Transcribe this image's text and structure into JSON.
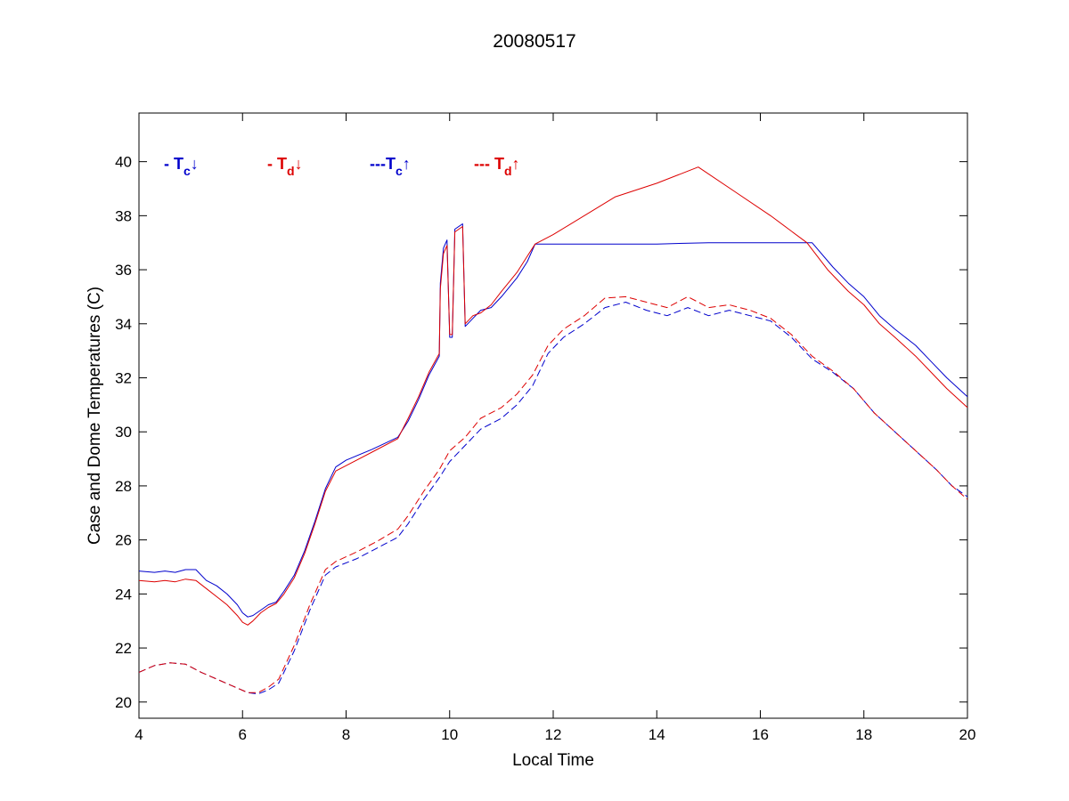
{
  "chart_data": {
    "type": "line",
    "title": "20080517",
    "xlabel": "Local Time",
    "ylabel": "Case and Dome Temperatures (C)",
    "xlim": [
      4,
      20
    ],
    "ylim": [
      19.4,
      41.8
    ],
    "xticks": [
      4,
      6,
      8,
      10,
      12,
      14,
      16,
      18,
      20
    ],
    "yticks": [
      20,
      22,
      24,
      26,
      28,
      30,
      32,
      34,
      36,
      38,
      40
    ],
    "grid": false,
    "legend_position": "top-left-inside",
    "colors": {
      "blue": "#0000cc",
      "red": "#dd0000"
    },
    "legend": [
      {
        "prefix": "- T",
        "sub": "c",
        "arrow": "↓",
        "color": "#0000cc"
      },
      {
        "prefix": "- T",
        "sub": "d",
        "arrow": "↓",
        "color": "#dd0000"
      },
      {
        "prefix": "---T",
        "sub": "c",
        "arrow": "↑",
        "color": "#0000cc"
      },
      {
        "prefix": "--- T",
        "sub": "d",
        "arrow": "↑",
        "color": "#dd0000"
      }
    ],
    "series": [
      {
        "color": "#0000cc",
        "dash": "solid",
        "points": [
          [
            4.0,
            24.85
          ],
          [
            4.3,
            24.8
          ],
          [
            4.5,
            24.85
          ],
          [
            4.7,
            24.8
          ],
          [
            4.9,
            24.9
          ],
          [
            5.1,
            24.9
          ],
          [
            5.3,
            24.5
          ],
          [
            5.5,
            24.3
          ],
          [
            5.7,
            24.0
          ],
          [
            5.9,
            23.6
          ],
          [
            6.0,
            23.3
          ],
          [
            6.1,
            23.15
          ],
          [
            6.2,
            23.2
          ],
          [
            6.35,
            23.4
          ],
          [
            6.5,
            23.6
          ],
          [
            6.65,
            23.7
          ],
          [
            6.8,
            24.1
          ],
          [
            7.0,
            24.7
          ],
          [
            7.2,
            25.6
          ],
          [
            7.4,
            26.7
          ],
          [
            7.6,
            27.9
          ],
          [
            7.8,
            28.7
          ],
          [
            8.0,
            28.95
          ],
          [
            8.5,
            29.35
          ],
          [
            9.0,
            29.8
          ],
          [
            9.2,
            30.4
          ],
          [
            9.4,
            31.2
          ],
          [
            9.6,
            32.1
          ],
          [
            9.8,
            32.8
          ],
          [
            9.82,
            35.5
          ],
          [
            9.88,
            36.8
          ],
          [
            9.95,
            37.1
          ],
          [
            10.0,
            33.5
          ],
          [
            10.05,
            33.5
          ],
          [
            10.1,
            37.5
          ],
          [
            10.25,
            37.7
          ],
          [
            10.3,
            33.9
          ],
          [
            10.45,
            34.2
          ],
          [
            10.6,
            34.5
          ],
          [
            10.8,
            34.6
          ],
          [
            11.0,
            35.0
          ],
          [
            11.3,
            35.7
          ],
          [
            11.5,
            36.3
          ],
          [
            11.65,
            36.95
          ],
          [
            12.0,
            36.95
          ],
          [
            13.0,
            36.95
          ],
          [
            14.0,
            36.95
          ],
          [
            15.0,
            37.0
          ],
          [
            16.0,
            37.0
          ],
          [
            17.0,
            37.0
          ],
          [
            17.4,
            36.1
          ],
          [
            17.7,
            35.5
          ],
          [
            18.0,
            35.0
          ],
          [
            18.3,
            34.3
          ],
          [
            18.6,
            33.8
          ],
          [
            19.0,
            33.2
          ],
          [
            19.3,
            32.6
          ],
          [
            19.6,
            32.0
          ],
          [
            20.0,
            31.3
          ]
        ]
      },
      {
        "color": "#dd0000",
        "dash": "solid",
        "points": [
          [
            4.0,
            24.5
          ],
          [
            4.3,
            24.45
          ],
          [
            4.5,
            24.5
          ],
          [
            4.7,
            24.45
          ],
          [
            4.9,
            24.55
          ],
          [
            5.1,
            24.5
          ],
          [
            5.3,
            24.2
          ],
          [
            5.5,
            23.9
          ],
          [
            5.7,
            23.6
          ],
          [
            5.9,
            23.2
          ],
          [
            6.0,
            22.95
          ],
          [
            6.1,
            22.85
          ],
          [
            6.2,
            23.0
          ],
          [
            6.35,
            23.3
          ],
          [
            6.5,
            23.5
          ],
          [
            6.65,
            23.65
          ],
          [
            6.8,
            24.0
          ],
          [
            7.0,
            24.6
          ],
          [
            7.2,
            25.5
          ],
          [
            7.4,
            26.6
          ],
          [
            7.6,
            27.8
          ],
          [
            7.8,
            28.55
          ],
          [
            8.0,
            28.75
          ],
          [
            8.5,
            29.25
          ],
          [
            9.0,
            29.75
          ],
          [
            9.2,
            30.5
          ],
          [
            9.4,
            31.3
          ],
          [
            9.6,
            32.2
          ],
          [
            9.8,
            32.9
          ],
          [
            9.82,
            35.3
          ],
          [
            9.88,
            36.6
          ],
          [
            9.95,
            36.9
          ],
          [
            10.0,
            33.6
          ],
          [
            10.05,
            33.6
          ],
          [
            10.1,
            37.4
          ],
          [
            10.25,
            37.6
          ],
          [
            10.3,
            34.0
          ],
          [
            10.45,
            34.3
          ],
          [
            10.6,
            34.4
          ],
          [
            10.8,
            34.7
          ],
          [
            11.0,
            35.2
          ],
          [
            11.3,
            35.9
          ],
          [
            11.5,
            36.5
          ],
          [
            11.65,
            36.95
          ],
          [
            12.0,
            37.3
          ],
          [
            13.2,
            38.7
          ],
          [
            14.0,
            39.2
          ],
          [
            14.8,
            39.8
          ],
          [
            15.5,
            38.9
          ],
          [
            16.2,
            38.0
          ],
          [
            16.9,
            37.0
          ],
          [
            17.3,
            36.0
          ],
          [
            17.7,
            35.2
          ],
          [
            18.0,
            34.7
          ],
          [
            18.3,
            34.0
          ],
          [
            18.6,
            33.5
          ],
          [
            19.0,
            32.8
          ],
          [
            19.3,
            32.2
          ],
          [
            19.6,
            31.6
          ],
          [
            20.0,
            30.9
          ]
        ]
      },
      {
        "color": "#0000cc",
        "dash": "dashed",
        "points": [
          [
            4.0,
            21.1
          ],
          [
            4.3,
            21.35
          ],
          [
            4.6,
            21.45
          ],
          [
            4.9,
            21.4
          ],
          [
            5.2,
            21.1
          ],
          [
            5.5,
            20.85
          ],
          [
            5.8,
            20.6
          ],
          [
            6.1,
            20.35
          ],
          [
            6.3,
            20.3
          ],
          [
            6.5,
            20.45
          ],
          [
            6.7,
            20.7
          ],
          [
            7.0,
            21.9
          ],
          [
            7.3,
            23.4
          ],
          [
            7.6,
            24.7
          ],
          [
            7.8,
            25.0
          ],
          [
            8.2,
            25.3
          ],
          [
            8.6,
            25.7
          ],
          [
            9.0,
            26.1
          ],
          [
            9.2,
            26.6
          ],
          [
            9.5,
            27.5
          ],
          [
            9.8,
            28.3
          ],
          [
            10.0,
            28.9
          ],
          [
            10.3,
            29.5
          ],
          [
            10.6,
            30.1
          ],
          [
            11.0,
            30.5
          ],
          [
            11.3,
            31.0
          ],
          [
            11.6,
            31.7
          ],
          [
            11.9,
            32.9
          ],
          [
            12.2,
            33.5
          ],
          [
            12.6,
            34.0
          ],
          [
            13.0,
            34.6
          ],
          [
            13.4,
            34.8
          ],
          [
            13.8,
            34.5
          ],
          [
            14.2,
            34.3
          ],
          [
            14.6,
            34.6
          ],
          [
            15.0,
            34.3
          ],
          [
            15.4,
            34.5
          ],
          [
            15.8,
            34.3
          ],
          [
            16.2,
            34.1
          ],
          [
            16.6,
            33.5
          ],
          [
            17.0,
            32.7
          ],
          [
            17.4,
            32.2
          ],
          [
            17.8,
            31.6
          ],
          [
            18.2,
            30.7
          ],
          [
            18.6,
            30.0
          ],
          [
            19.0,
            29.3
          ],
          [
            19.4,
            28.6
          ],
          [
            19.7,
            28.0
          ],
          [
            20.0,
            27.6
          ]
        ]
      },
      {
        "color": "#dd0000",
        "dash": "dashed",
        "points": [
          [
            4.0,
            21.1
          ],
          [
            4.3,
            21.35
          ],
          [
            4.6,
            21.45
          ],
          [
            4.9,
            21.4
          ],
          [
            5.2,
            21.1
          ],
          [
            5.5,
            20.85
          ],
          [
            5.8,
            20.6
          ],
          [
            6.1,
            20.35
          ],
          [
            6.3,
            20.35
          ],
          [
            6.5,
            20.55
          ],
          [
            6.7,
            20.85
          ],
          [
            7.0,
            22.1
          ],
          [
            7.3,
            23.6
          ],
          [
            7.6,
            24.9
          ],
          [
            7.8,
            25.2
          ],
          [
            8.2,
            25.55
          ],
          [
            8.6,
            25.95
          ],
          [
            9.0,
            26.4
          ],
          [
            9.2,
            26.9
          ],
          [
            9.5,
            27.8
          ],
          [
            9.8,
            28.6
          ],
          [
            10.0,
            29.3
          ],
          [
            10.3,
            29.8
          ],
          [
            10.6,
            30.5
          ],
          [
            11.0,
            30.9
          ],
          [
            11.3,
            31.4
          ],
          [
            11.6,
            32.1
          ],
          [
            11.9,
            33.2
          ],
          [
            12.2,
            33.8
          ],
          [
            12.6,
            34.3
          ],
          [
            13.0,
            34.95
          ],
          [
            13.4,
            35.0
          ],
          [
            13.8,
            34.8
          ],
          [
            14.2,
            34.6
          ],
          [
            14.6,
            35.0
          ],
          [
            15.0,
            34.6
          ],
          [
            15.4,
            34.7
          ],
          [
            15.8,
            34.5
          ],
          [
            16.2,
            34.2
          ],
          [
            16.6,
            33.6
          ],
          [
            17.0,
            32.8
          ],
          [
            17.4,
            32.25
          ],
          [
            17.8,
            31.6
          ],
          [
            18.2,
            30.7
          ],
          [
            18.6,
            30.0
          ],
          [
            19.0,
            29.3
          ],
          [
            19.4,
            28.6
          ],
          [
            19.7,
            28.0
          ],
          [
            20.0,
            27.5
          ]
        ]
      }
    ]
  }
}
